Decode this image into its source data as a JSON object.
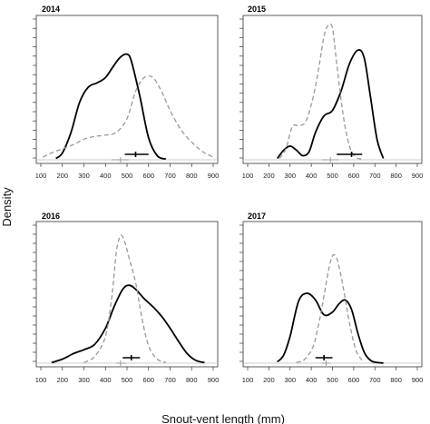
{
  "figure": {
    "ylabel": "Density",
    "xlabel": "Snout-vent length (mm)"
  },
  "chart_data": [
    {
      "type": "line",
      "title": "2014",
      "xlim": [
        100,
        900
      ],
      "x_ticks": [
        100,
        200,
        300,
        400,
        500,
        600,
        700,
        800,
        900
      ],
      "y_tick_count": 16,
      "series": [
        {
          "style": "solid",
          "color": "#000000",
          "x": [
            170,
            200,
            240,
            280,
            320,
            360,
            400,
            440,
            470,
            500,
            520,
            560,
            600,
            640,
            680
          ],
          "y": [
            0.01,
            0.05,
            0.2,
            0.42,
            0.53,
            0.56,
            0.6,
            0.69,
            0.75,
            0.77,
            0.72,
            0.46,
            0.16,
            0.03,
            0.005
          ]
        },
        {
          "style": "dashed",
          "color": "#999999",
          "x": [
            110,
            150,
            200,
            250,
            300,
            350,
            400,
            450,
            500,
            540,
            580,
            620,
            660,
            700,
            750,
            800,
            850,
            900
          ],
          "y": [
            0.02,
            0.05,
            0.08,
            0.11,
            0.15,
            0.17,
            0.18,
            0.2,
            0.3,
            0.5,
            0.6,
            0.6,
            0.5,
            0.36,
            0.22,
            0.13,
            0.06,
            0.02
          ]
        }
      ],
      "summary_bars": [
        {
          "color": "#000000",
          "center": 540,
          "low": 490,
          "high": 600
        },
        {
          "color": "#999999",
          "center": 470,
          "low": 430,
          "high": 510
        }
      ]
    },
    {
      "type": "line",
      "title": "2015",
      "xlim": [
        100,
        900
      ],
      "x_ticks": [
        100,
        200,
        300,
        400,
        500,
        600,
        700,
        800,
        900
      ],
      "y_tick_count": 16,
      "series": [
        {
          "style": "solid",
          "color": "#000000",
          "x": [
            240,
            270,
            300,
            330,
            360,
            390,
            420,
            460,
            500,
            540,
            580,
            620,
            650,
            680,
            710,
            740
          ],
          "y": [
            0.01,
            0.07,
            0.1,
            0.07,
            0.03,
            0.06,
            0.2,
            0.32,
            0.36,
            0.5,
            0.7,
            0.8,
            0.74,
            0.45,
            0.15,
            0.01
          ]
        },
        {
          "style": "dashed",
          "color": "#999999",
          "x": [
            250,
            280,
            310,
            340,
            370,
            400,
            430,
            460,
            480,
            500,
            520,
            550,
            580,
            610,
            640
          ],
          "y": [
            0.01,
            0.08,
            0.24,
            0.25,
            0.27,
            0.4,
            0.62,
            0.9,
            0.98,
            0.96,
            0.7,
            0.33,
            0.1,
            0.02,
            0.005
          ]
        }
      ],
      "summary_bars": [
        {
          "color": "#000000",
          "center": 590,
          "low": 520,
          "high": 640
        },
        {
          "color": "#999999",
          "center": 490,
          "low": 450,
          "high": 530
        }
      ]
    },
    {
      "type": "line",
      "title": "2016",
      "xlim": [
        100,
        900
      ],
      "x_ticks": [
        100,
        200,
        300,
        400,
        500,
        600,
        700,
        800,
        900
      ],
      "y_tick_count": 16,
      "series": [
        {
          "style": "solid",
          "color": "#000000",
          "x": [
            150,
            200,
            250,
            300,
            350,
            400,
            440,
            480,
            510,
            540,
            580,
            620,
            660,
            700,
            740,
            780,
            820,
            860
          ],
          "y": [
            0.005,
            0.03,
            0.07,
            0.1,
            0.14,
            0.26,
            0.42,
            0.55,
            0.58,
            0.55,
            0.48,
            0.42,
            0.35,
            0.26,
            0.16,
            0.07,
            0.02,
            0.005
          ]
        },
        {
          "style": "dashed",
          "color": "#999999",
          "x": [
            300,
            350,
            400,
            430,
            450,
            470,
            490,
            510,
            540,
            570,
            600,
            640,
            680
          ],
          "y": [
            0.005,
            0.05,
            0.2,
            0.5,
            0.82,
            0.95,
            0.9,
            0.78,
            0.6,
            0.33,
            0.13,
            0.03,
            0.005
          ]
        }
      ],
      "summary_bars": [
        {
          "color": "#000000",
          "center": 520,
          "low": 480,
          "high": 560
        },
        {
          "color": "#999999",
          "center": 470,
          "low": 450,
          "high": 495
        }
      ]
    },
    {
      "type": "line",
      "title": "2017",
      "xlim": [
        100,
        900
      ],
      "x_ticks": [
        100,
        200,
        300,
        400,
        500,
        600,
        700,
        800,
        900
      ],
      "y_tick_count": 16,
      "series": [
        {
          "style": "solid",
          "color": "#000000",
          "x": [
            240,
            270,
            300,
            340,
            380,
            420,
            460,
            500,
            530,
            560,
            590,
            620,
            650,
            680,
            710,
            740
          ],
          "y": [
            0.01,
            0.06,
            0.2,
            0.46,
            0.52,
            0.47,
            0.36,
            0.38,
            0.44,
            0.47,
            0.4,
            0.22,
            0.08,
            0.02,
            0.005,
            0.001
          ]
        },
        {
          "style": "dashed",
          "color": "#999999",
          "x": [
            330,
            370,
            410,
            440,
            460,
            480,
            500,
            520,
            540,
            560,
            580,
            610,
            640
          ],
          "y": [
            0.005,
            0.03,
            0.13,
            0.33,
            0.5,
            0.68,
            0.8,
            0.78,
            0.65,
            0.48,
            0.3,
            0.1,
            0.02
          ]
        }
      ],
      "summary_bars": [
        {
          "color": "#000000",
          "center": 460,
          "low": 420,
          "high": 500
        },
        {
          "color": "#999999",
          "center": 470,
          "low": 450,
          "high": 490
        }
      ]
    }
  ]
}
